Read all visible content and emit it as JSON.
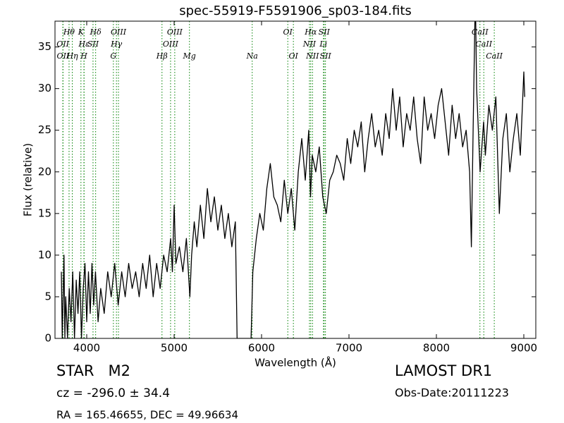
{
  "chart_data": {
    "type": "line",
    "title": "spec-55919-F5591906_sp03-184.fits",
    "x_label": "Wavelength (Å)",
    "y_label": "Flux (relative)",
    "color": "#000000",
    "spectral_line_color": "#008000",
    "xlim": [
      3637,
      9137
    ],
    "ylim": [
      0,
      38.1
    ],
    "xticks": [
      4000,
      5000,
      6000,
      7000,
      8000,
      9000
    ],
    "yticks": [
      0,
      5,
      10,
      15,
      20,
      25,
      30,
      35
    ],
    "x": [
      3710,
      3720,
      3730,
      3740,
      3750,
      3760,
      3780,
      3800,
      3820,
      3840,
      3860,
      3880,
      3900,
      3920,
      3940,
      3960,
      3980,
      4000,
      4020,
      4040,
      4060,
      4080,
      4100,
      4130,
      4160,
      4200,
      4240,
      4280,
      4320,
      4360,
      4400,
      4440,
      4480,
      4520,
      4560,
      4600,
      4640,
      4680,
      4720,
      4760,
      4800,
      4840,
      4880,
      4920,
      4960,
      4980,
      5000,
      5020,
      5060,
      5100,
      5140,
      5180,
      5200,
      5230,
      5260,
      5300,
      5340,
      5380,
      5420,
      5460,
      5500,
      5540,
      5580,
      5620,
      5660,
      5700,
      5720,
      5740,
      5800,
      5860,
      5880,
      5900,
      5940,
      5980,
      6020,
      6060,
      6100,
      6140,
      6180,
      6220,
      6260,
      6300,
      6340,
      6380,
      6420,
      6460,
      6500,
      6540,
      6560,
      6580,
      6620,
      6660,
      6700,
      6740,
      6780,
      6820,
      6860,
      6900,
      6940,
      6980,
      7020,
      7060,
      7100,
      7140,
      7180,
      7220,
      7260,
      7300,
      7340,
      7380,
      7420,
      7460,
      7500,
      7540,
      7580,
      7620,
      7660,
      7700,
      7740,
      7780,
      7820,
      7860,
      7900,
      7940,
      7980,
      8020,
      8060,
      8100,
      8140,
      8180,
      8220,
      8260,
      8300,
      8340,
      8380,
      8400,
      8420,
      8440,
      8450,
      8460,
      8500,
      8540,
      8560,
      8600,
      8640,
      8680,
      8720,
      8760,
      8800,
      8840,
      8880,
      8920,
      8960,
      9000,
      9010
    ],
    "values": [
      8,
      0,
      5,
      10,
      0,
      5,
      0,
      6,
      2,
      8,
      0,
      7,
      3,
      8,
      0,
      6,
      9,
      2,
      8,
      3,
      9,
      4,
      8,
      2,
      6,
      3,
      8,
      5,
      9,
      4,
      8,
      5,
      9,
      6,
      8,
      5,
      9,
      6,
      10,
      5,
      9,
      6,
      10,
      8,
      12,
      8,
      16,
      9,
      11,
      8,
      12,
      5,
      10,
      14,
      11,
      16,
      12,
      18,
      14,
      17,
      13,
      16,
      12,
      15,
      11,
      14,
      0,
      0,
      0,
      0,
      0,
      8,
      12,
      15,
      13,
      18,
      21,
      17,
      16,
      14,
      19,
      15,
      18,
      13,
      20,
      24,
      19,
      25,
      17,
      22,
      20,
      23,
      17,
      15,
      19,
      20,
      22,
      21,
      19,
      24,
      21,
      25,
      23,
      26,
      20,
      24,
      27,
      23,
      25,
      22,
      27,
      24,
      30,
      25,
      29,
      23,
      27,
      25,
      29,
      24,
      21,
      29,
      25,
      27,
      24,
      28,
      30,
      26,
      22,
      28,
      24,
      27,
      23,
      25,
      20,
      11,
      25,
      38,
      38,
      30,
      20,
      26,
      22,
      28,
      25,
      29,
      15,
      24,
      27,
      20,
      24,
      27,
      22,
      32,
      29
    ],
    "spectral_lines": [
      [
        {
          "label": "Hθ",
          "wavelength": 3798
        },
        {
          "label": "K",
          "wavelength": 3934
        },
        {
          "label": "Hδ",
          "wavelength": 4102
        },
        {
          "label": "OIII",
          "wavelength": 4363
        },
        {
          "label": "OIII",
          "wavelength": 5007
        },
        {
          "label": "OI",
          "wavelength": 6300
        },
        {
          "label": "Hα",
          "wavelength": 6563
        },
        {
          "label": "SII",
          "wavelength": 6716
        },
        {
          "label": "CaII",
          "wavelength": 8498
        }
      ],
      [
        {
          "label": "OII",
          "wavelength": 3727
        },
        {
          "label": "Hε",
          "wavelength": 3970
        },
        {
          "label": "SII",
          "wavelength": 4072
        },
        {
          "label": "Hγ",
          "wavelength": 4340
        },
        {
          "label": "OIII",
          "wavelength": 4959
        },
        {
          "label": "NII",
          "wavelength": 6548
        },
        {
          "label": "Li",
          "wavelength": 6708
        },
        {
          "label": "CaII",
          "wavelength": 8542
        }
      ],
      [
        {
          "label": "OII",
          "wavelength": 3729
        },
        {
          "label": "Hη",
          "wavelength": 3835
        },
        {
          "label": "H",
          "wavelength": 3968
        },
        {
          "label": "G",
          "wavelength": 4305
        },
        {
          "label": "Hβ",
          "wavelength": 4861
        },
        {
          "label": "Mg",
          "wavelength": 5175
        },
        {
          "label": "Na",
          "wavelength": 5893
        },
        {
          "label": "OI",
          "wavelength": 6364
        },
        {
          "label": "NII",
          "wavelength": 6583
        },
        {
          "label": "SII",
          "wavelength": 6731
        },
        {
          "label": "CaII",
          "wavelength": 8662
        }
      ]
    ],
    "annotations": [
      "STAR   M2",
      "cz = -296.0 ± 34.4",
      "RA = 165.46655, DEC = 49.96634",
      "LAMOST DR1",
      "Obs-Date:20111223"
    ]
  }
}
